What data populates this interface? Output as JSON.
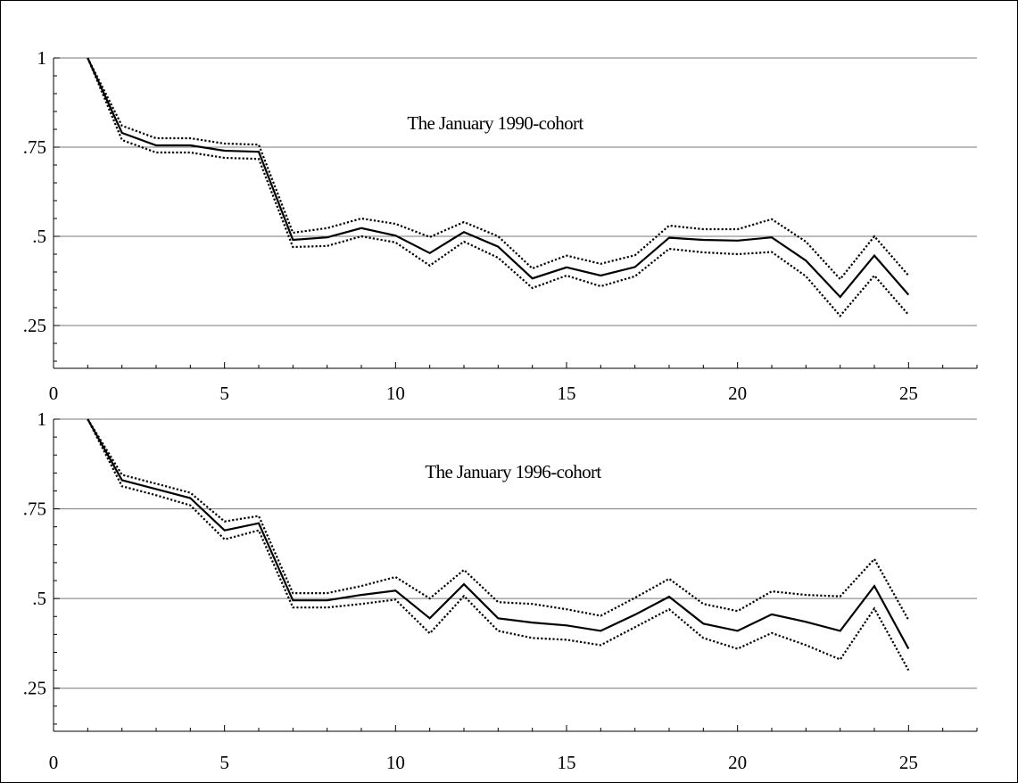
{
  "chart_data": [
    {
      "type": "line",
      "title": "The January 1990-cohort",
      "xlabel": "",
      "ylabel": "",
      "xlim": [
        0,
        27
      ],
      "ylim": [
        0.13,
        1.0
      ],
      "x_ticks": [
        0,
        5,
        10,
        15,
        20,
        25
      ],
      "x_tick_labels": [
        "0",
        "5",
        "10",
        "15",
        "20",
        "25"
      ],
      "y_ticks": [
        1,
        0.75,
        0.5,
        0.25
      ],
      "y_tick_labels": [
        "1",
        ".75",
        ".5",
        ".25"
      ],
      "gridlines": [
        1,
        0.75,
        0.5,
        0.25
      ],
      "grid": true,
      "x": [
        1,
        2,
        3,
        4,
        5,
        6,
        7,
        8,
        9,
        10,
        11,
        12,
        13,
        14,
        15,
        16,
        17,
        18,
        19,
        20,
        21,
        22,
        23,
        24,
        25
      ],
      "series": [
        {
          "style": "solid",
          "values": [
            1.0,
            0.79,
            0.755,
            0.755,
            0.74,
            0.737,
            0.49,
            0.497,
            0.523,
            0.502,
            0.453,
            0.512,
            0.471,
            0.382,
            0.413,
            0.39,
            0.414,
            0.496,
            0.49,
            0.488,
            0.497,
            0.432,
            0.33,
            0.446,
            0.336
          ]
        },
        {
          "style": "dotted",
          "values": [
            1.0,
            0.81,
            0.775,
            0.775,
            0.76,
            0.757,
            0.51,
            0.523,
            0.55,
            0.535,
            0.498,
            0.54,
            0.5,
            0.41,
            0.446,
            0.423,
            0.447,
            0.53,
            0.52,
            0.52,
            0.548,
            0.485,
            0.38,
            0.5,
            0.39
          ]
        },
        {
          "style": "dotted",
          "values": [
            1.0,
            0.77,
            0.735,
            0.735,
            0.72,
            0.717,
            0.47,
            0.473,
            0.5,
            0.483,
            0.418,
            0.485,
            0.44,
            0.355,
            0.39,
            0.36,
            0.388,
            0.465,
            0.455,
            0.45,
            0.456,
            0.388,
            0.277,
            0.39,
            0.28
          ]
        }
      ]
    },
    {
      "type": "line",
      "title": "The January 1996-cohort",
      "xlabel": "",
      "ylabel": "",
      "xlim": [
        0,
        27
      ],
      "ylim": [
        0.13,
        1.0
      ],
      "x_ticks": [
        0,
        5,
        10,
        15,
        20,
        25
      ],
      "x_tick_labels": [
        "0",
        "5",
        "10",
        "15",
        "20",
        "25"
      ],
      "y_ticks": [
        1,
        0.75,
        0.5,
        0.25
      ],
      "y_tick_labels": [
        "1",
        ".75",
        ".5",
        ".25"
      ],
      "gridlines": [
        1,
        0.75,
        0.5,
        0.25
      ],
      "grid": true,
      "x": [
        1,
        2,
        3,
        4,
        5,
        6,
        7,
        8,
        9,
        10,
        11,
        12,
        13,
        14,
        15,
        16,
        17,
        18,
        19,
        20,
        21,
        22,
        23,
        24,
        25
      ],
      "series": [
        {
          "style": "solid",
          "values": [
            1.0,
            0.83,
            0.805,
            0.78,
            0.69,
            0.71,
            0.495,
            0.495,
            0.51,
            0.522,
            0.445,
            0.54,
            0.445,
            0.433,
            0.425,
            0.41,
            0.455,
            0.505,
            0.43,
            0.41,
            0.456,
            0.435,
            0.41,
            0.535,
            0.36
          ]
        },
        {
          "style": "dotted",
          "values": [
            1.0,
            0.845,
            0.82,
            0.795,
            0.715,
            0.73,
            0.515,
            0.515,
            0.535,
            0.56,
            0.5,
            0.58,
            0.49,
            0.485,
            0.47,
            0.452,
            0.502,
            0.555,
            0.485,
            0.465,
            0.52,
            0.51,
            0.506,
            0.61,
            0.44
          ]
        },
        {
          "style": "dotted",
          "values": [
            1.0,
            0.813,
            0.788,
            0.76,
            0.665,
            0.69,
            0.475,
            0.475,
            0.485,
            0.497,
            0.403,
            0.507,
            0.41,
            0.39,
            0.385,
            0.37,
            0.42,
            0.47,
            0.39,
            0.36,
            0.404,
            0.37,
            0.33,
            0.472,
            0.3
          ]
        }
      ]
    }
  ]
}
